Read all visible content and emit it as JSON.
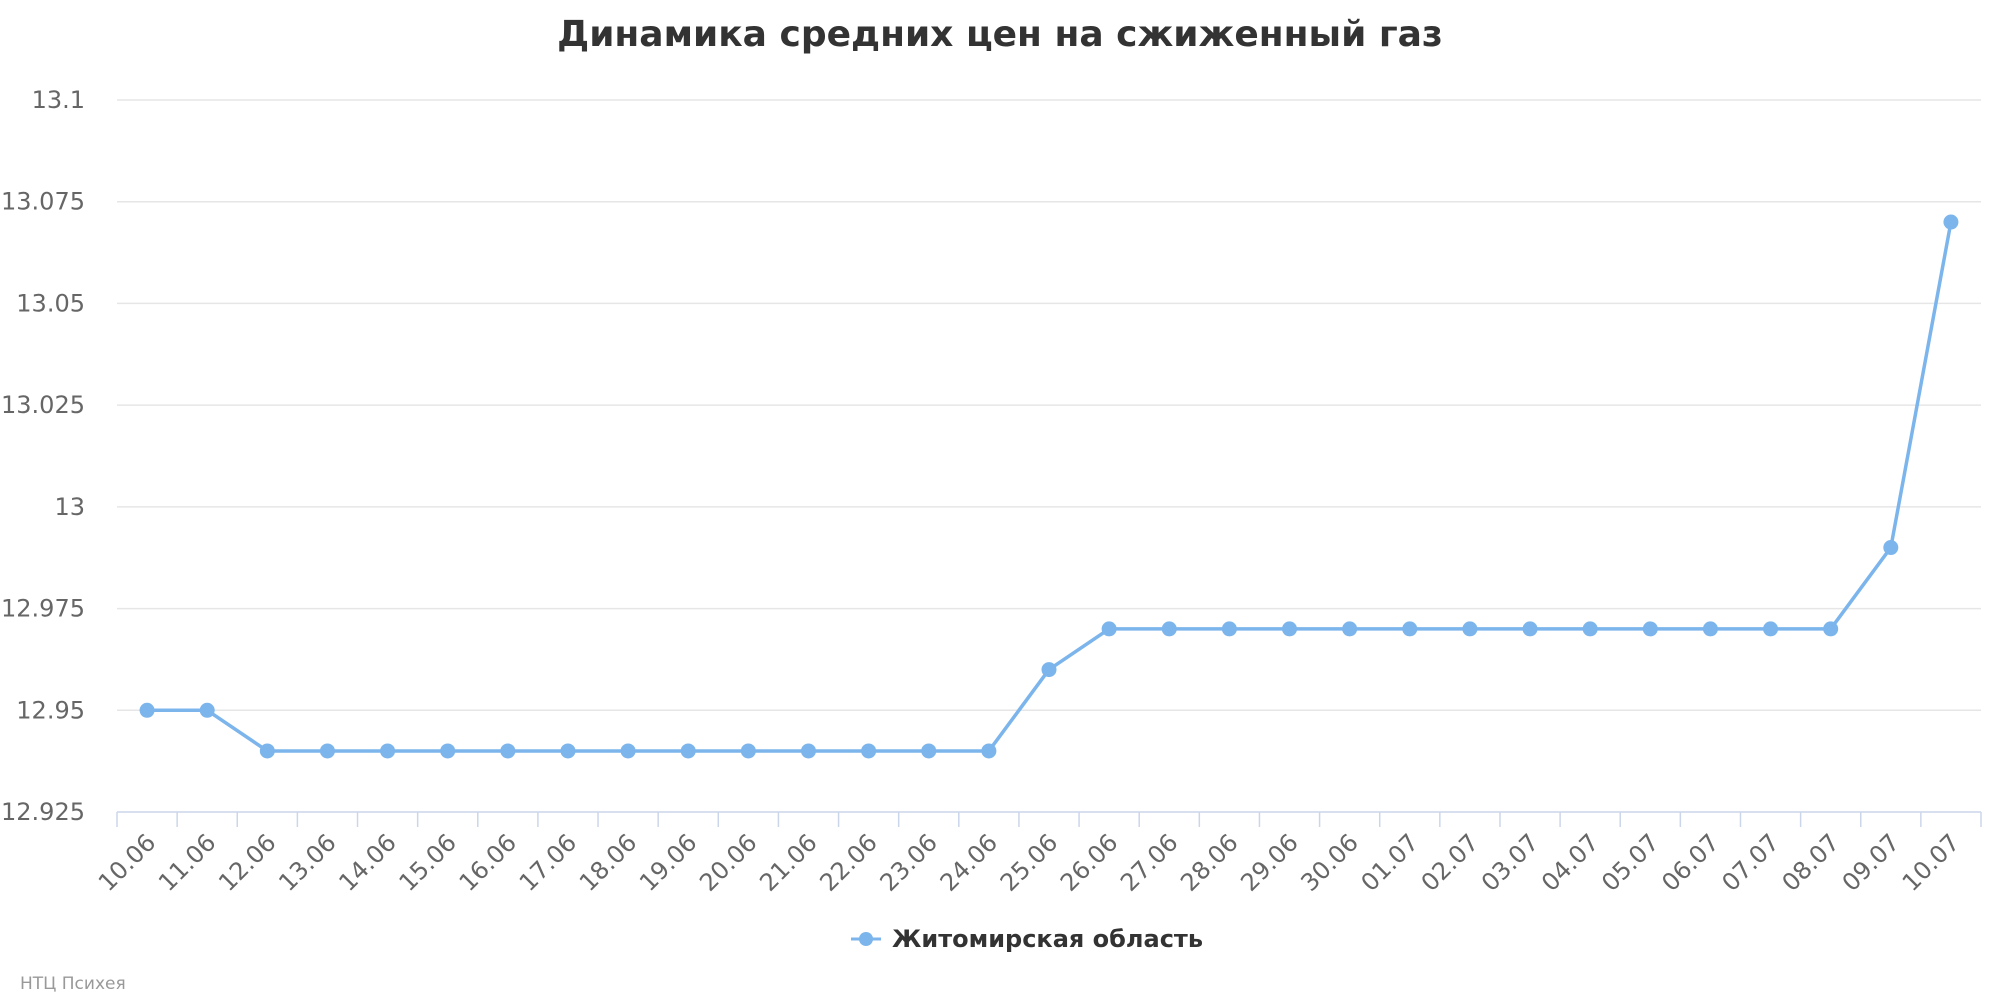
{
  "chart_data": {
    "type": "line",
    "title": "Динамика средних цен на сжиженный газ",
    "xlabel": "",
    "ylabel": "",
    "categories": [
      "10.06",
      "11.06",
      "12.06",
      "13.06",
      "14.06",
      "15.06",
      "16.06",
      "17.06",
      "18.06",
      "19.06",
      "20.06",
      "21.06",
      "22.06",
      "23.06",
      "24.06",
      "25.06",
      "26.06",
      "27.06",
      "28.06",
      "29.06",
      "30.06",
      "01.07",
      "02.07",
      "03.07",
      "04.07",
      "05.07",
      "06.07",
      "07.07",
      "08.07",
      "09.07",
      "10.07"
    ],
    "series": [
      {
        "name": "Житомирская область",
        "values": [
          12.95,
          12.95,
          12.94,
          12.94,
          12.94,
          12.94,
          12.94,
          12.94,
          12.94,
          12.94,
          12.94,
          12.94,
          12.94,
          12.94,
          12.94,
          12.96,
          12.97,
          12.97,
          12.97,
          12.97,
          12.97,
          12.97,
          12.97,
          12.97,
          12.97,
          12.97,
          12.97,
          12.97,
          12.97,
          12.99,
          13.07
        ]
      }
    ],
    "ylim": [
      12.925,
      13.1
    ],
    "yticks": [
      "12.925",
      "12.95",
      "12.975",
      "13",
      "13.025",
      "13.05",
      "13.075",
      "13.1"
    ],
    "grid": true,
    "legend_position": "bottom-center",
    "colors": {
      "series": "#7cb5ec",
      "grid": "#e6e6e6",
      "axis": "#ccd6eb"
    }
  },
  "credits": "НТЦ Психея"
}
